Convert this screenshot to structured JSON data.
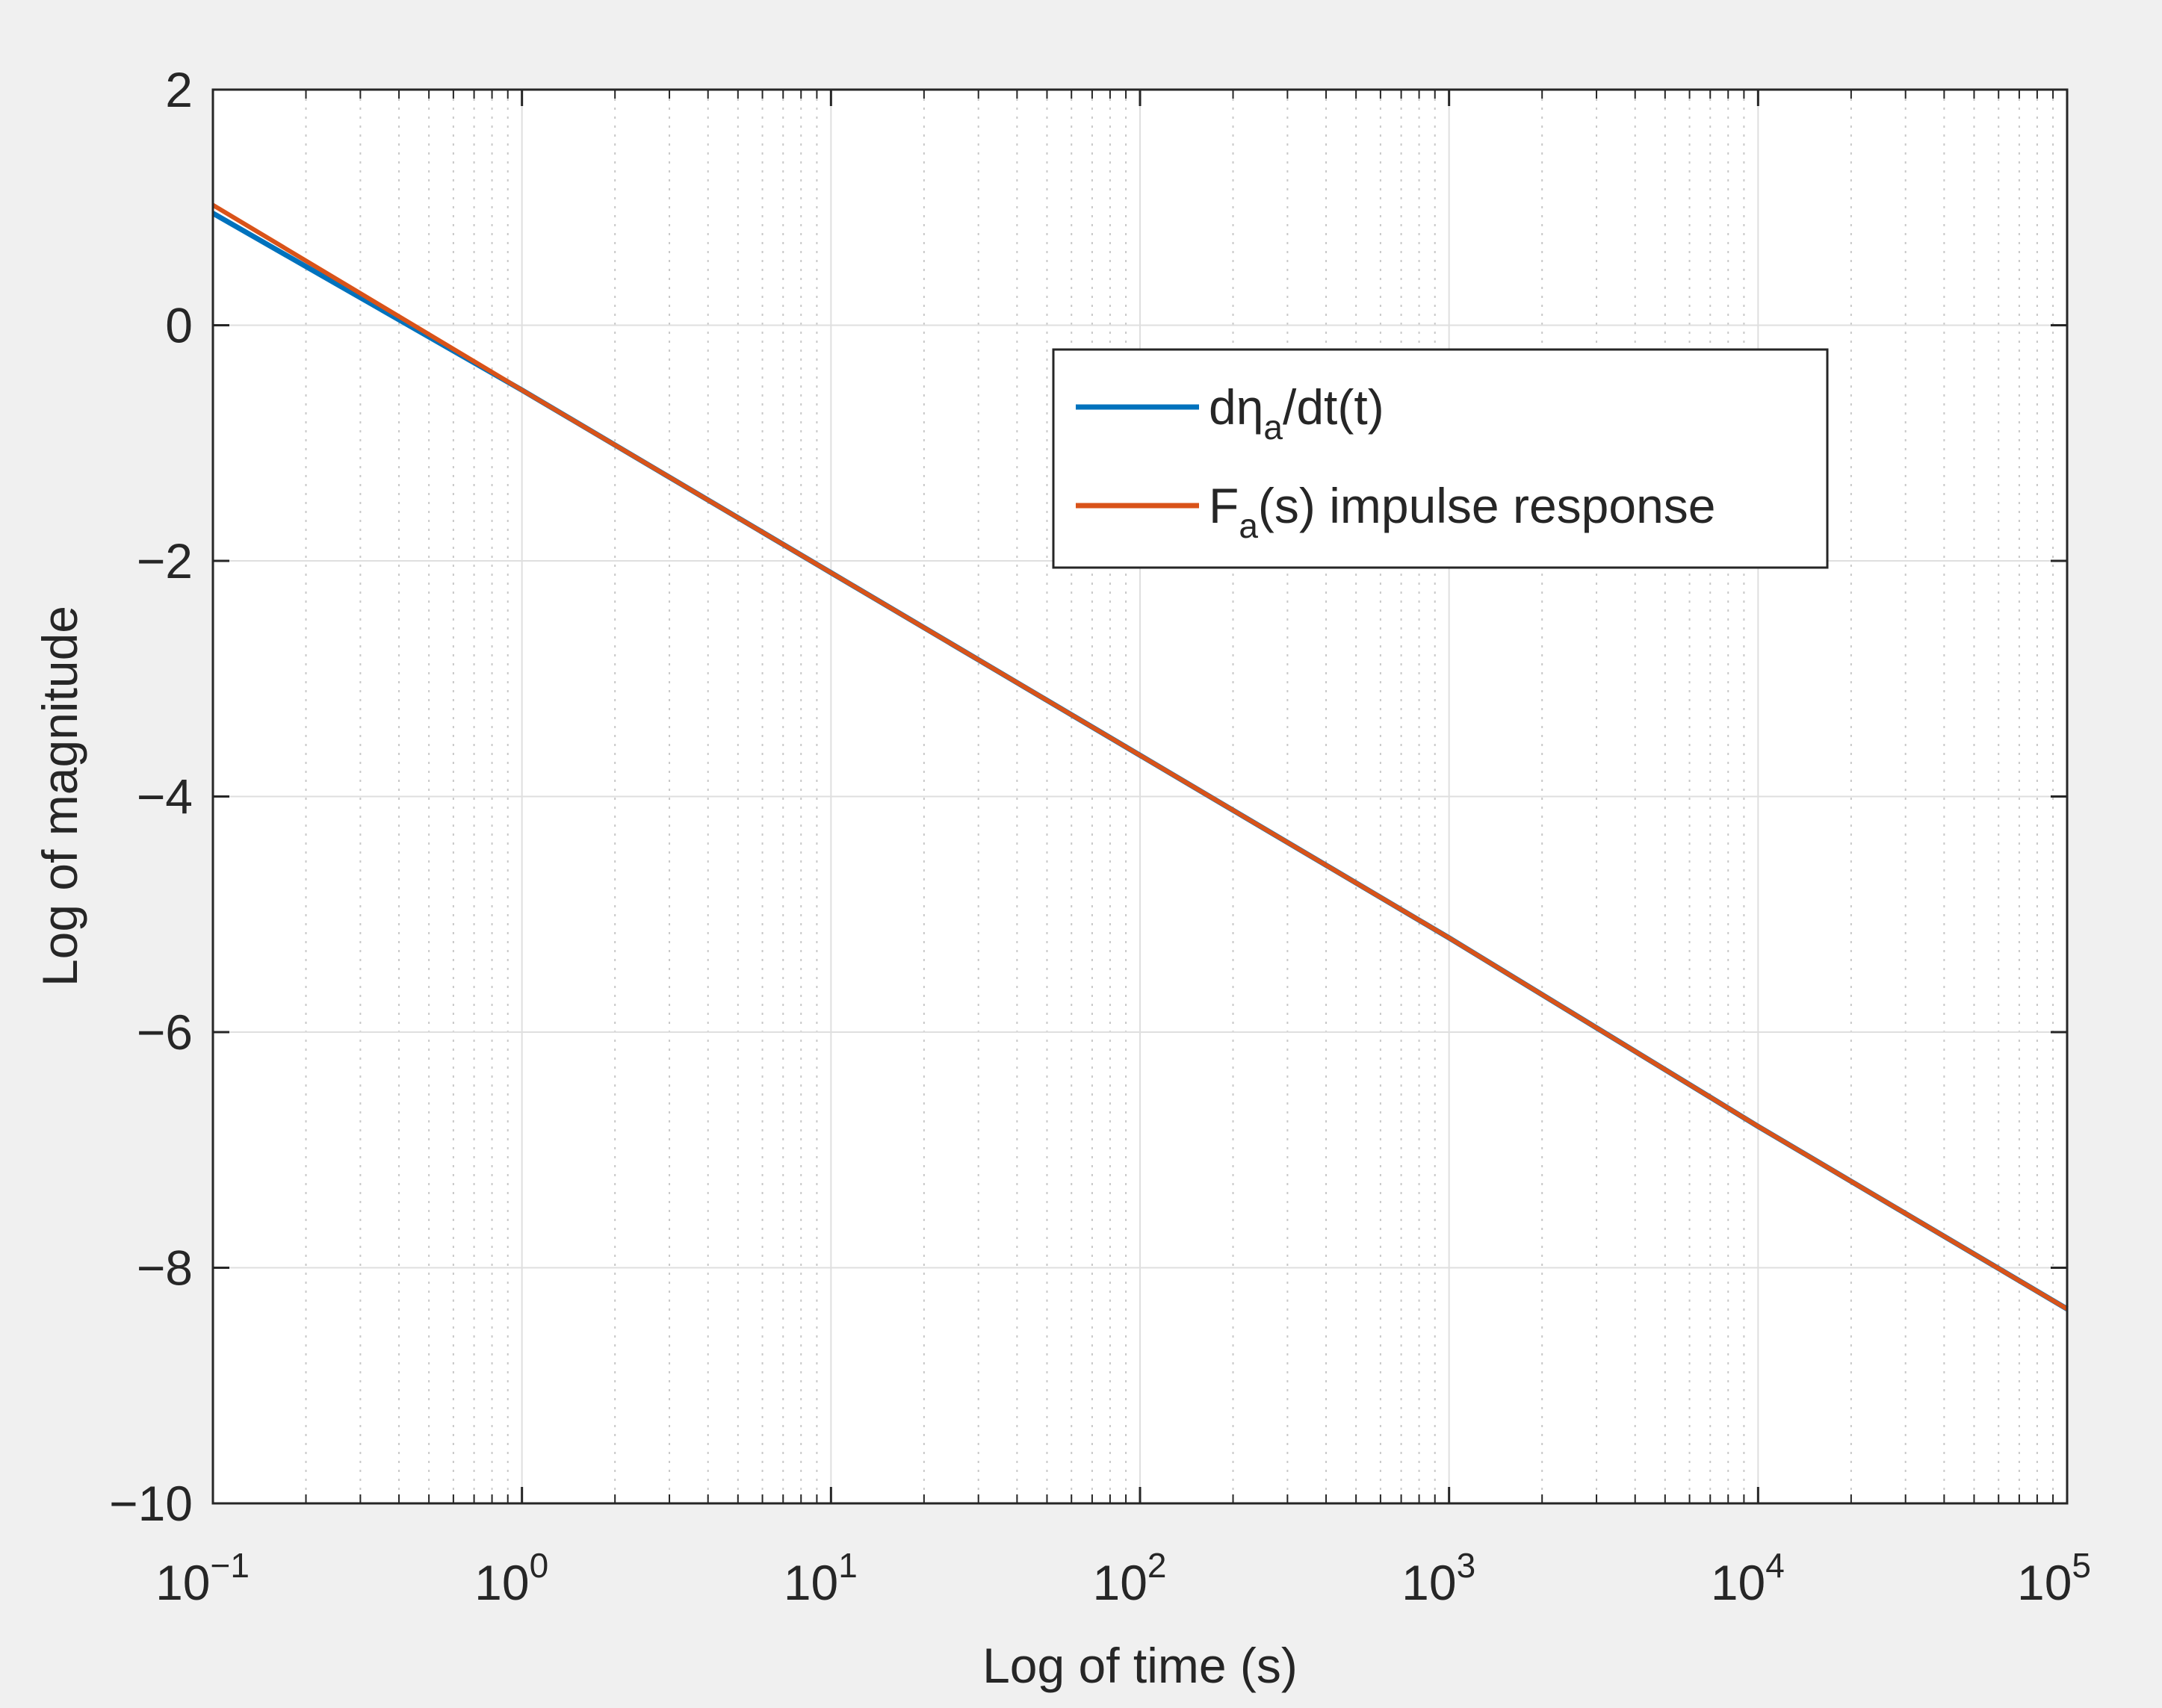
{
  "colors": {
    "figure_background": "#f0f0f0",
    "axes_background": "#ffffff",
    "axis_color": "#262626",
    "grid_major": "#dfdfdf",
    "grid_minor": "#c8c8c8",
    "series_1": "#0072bd",
    "series_2": "#d95319"
  },
  "chart_data": {
    "type": "line",
    "xscale": "log",
    "xlabel": "Log of time (s)",
    "ylabel": "Log of magnitude",
    "xlim": [
      0.1,
      100000
    ],
    "ylim": [
      -10,
      2
    ],
    "grid": "on (major and minor on x)",
    "legend_position": "upper-right (inside axes)",
    "x_ticks": [
      {
        "base": "10",
        "exp": "−1",
        "value": 0.1
      },
      {
        "base": "10",
        "exp": "0",
        "value": 1
      },
      {
        "base": "10",
        "exp": "1",
        "value": 10
      },
      {
        "base": "10",
        "exp": "2",
        "value": 100
      },
      {
        "base": "10",
        "exp": "3",
        "value": 1000
      },
      {
        "base": "10",
        "exp": "4",
        "value": 10000
      },
      {
        "base": "10",
        "exp": "5",
        "value": 100000
      }
    ],
    "y_ticks": [
      {
        "label": "2",
        "value": 2
      },
      {
        "label": "0",
        "value": 0
      },
      {
        "label": "−2",
        "value": -2
      },
      {
        "label": "−4",
        "value": -4
      },
      {
        "label": "−6",
        "value": -6
      },
      {
        "label": "−8",
        "value": -8
      },
      {
        "label": "−10",
        "value": -10
      }
    ],
    "series": [
      {
        "legend_main": "dη",
        "legend_sub": "a",
        "legend_tail": "/dt(t)",
        "color": "#0072bd",
        "x": [
          0.1,
          1,
          10,
          100,
          1000,
          10000,
          100000
        ],
        "y": [
          0.95,
          -0.55,
          -2.1,
          -3.65,
          -5.2,
          -6.8,
          -8.35
        ]
      },
      {
        "legend_main": "F",
        "legend_sub": "a",
        "legend_tail": "(s) impulse response",
        "color": "#d95319",
        "x": [
          0.1,
          1,
          10,
          100,
          1000,
          10000,
          100000
        ],
        "y": [
          1.02,
          -0.55,
          -2.1,
          -3.65,
          -5.2,
          -6.8,
          -8.35
        ]
      }
    ]
  }
}
